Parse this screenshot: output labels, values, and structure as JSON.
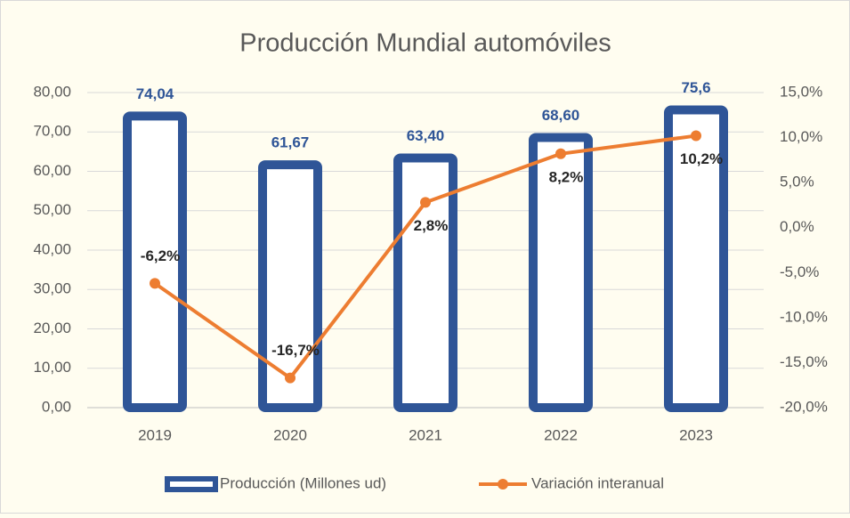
{
  "chart_data": {
    "type": "bar",
    "title": "Producción Mundial automóviles",
    "categories": [
      "2019",
      "2020",
      "2021",
      "2022",
      "2023"
    ],
    "series": [
      {
        "name": "Producción (Millones ud)",
        "type": "bar",
        "color": "#2f5597",
        "values": [
          74.04,
          61.67,
          63.4,
          68.6,
          75.6
        ],
        "value_labels": [
          "74,04",
          "61,67",
          "63,40",
          "68,60",
          "75,6"
        ]
      },
      {
        "name": "Variación interanual",
        "type": "line",
        "axis": "y2",
        "color": "#ed7d31",
        "values": [
          -6.2,
          -16.7,
          2.8,
          8.2,
          10.2
        ],
        "value_labels": [
          "-6,2%",
          "-16,7%",
          "2,8%",
          "8,2%",
          "10,2%"
        ]
      }
    ],
    "ylim": [
      0,
      80
    ],
    "yticks": [
      {
        "value": 0,
        "label": "0,00"
      },
      {
        "value": 10,
        "label": "10,00"
      },
      {
        "value": 20,
        "label": "20,00"
      },
      {
        "value": 30,
        "label": "30,00"
      },
      {
        "value": 40,
        "label": "40,00"
      },
      {
        "value": 50,
        "label": "50,00"
      },
      {
        "value": 60,
        "label": "60,00"
      },
      {
        "value": 70,
        "label": "70,00"
      },
      {
        "value": 80,
        "label": "80,00"
      }
    ],
    "y2lim": [
      -20,
      15
    ],
    "y2ticks": [
      {
        "value": -20,
        "label": "-20,0%"
      },
      {
        "value": -15,
        "label": "-15,0%"
      },
      {
        "value": -10,
        "label": "-10,0%"
      },
      {
        "value": -5,
        "label": "-5,0%"
      },
      {
        "value": 0,
        "label": "0,0%"
      },
      {
        "value": 5,
        "label": "5,0%"
      },
      {
        "value": 10,
        "label": "10,0%"
      },
      {
        "value": 15,
        "label": "15,0%"
      }
    ],
    "grid": true,
    "legend": "bottom"
  }
}
